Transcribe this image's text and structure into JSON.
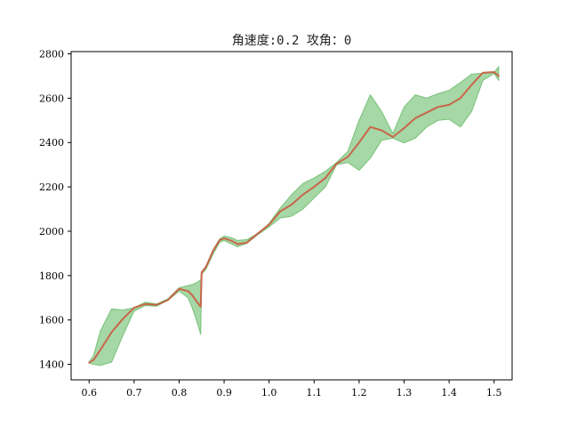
{
  "chart_data": {
    "type": "area",
    "title": "角速度:0.2 攻角：0",
    "xlabel": "",
    "ylabel": "",
    "xlim": [
      0.56,
      1.54
    ],
    "ylim": [
      1330,
      2810
    ],
    "x_ticks": [
      "0.6",
      "0.7",
      "0.8",
      "0.9",
      "1.0",
      "1.1",
      "1.2",
      "1.3",
      "1.4",
      "1.5"
    ],
    "y_ticks": [
      "1400",
      "1600",
      "1800",
      "2000",
      "2200",
      "2400",
      "2600",
      "2800"
    ],
    "grid": false,
    "legend": "none",
    "colors": {
      "band": "#77c277",
      "line": "#c8664a"
    },
    "series": [
      {
        "type": "line",
        "x": [
          0.6,
          0.61,
          0.625,
          0.65,
          0.675,
          0.7,
          0.725,
          0.75,
          0.775,
          0.8,
          0.82,
          0.83,
          0.84,
          0.848,
          0.85,
          0.86,
          0.875,
          0.89,
          0.9,
          0.915,
          0.93,
          0.95,
          0.975,
          1.0,
          1.025,
          1.05,
          1.075,
          1.1,
          1.125,
          1.15,
          1.175,
          1.2,
          1.225,
          1.25,
          1.275,
          1.3,
          1.325,
          1.35,
          1.375,
          1.4,
          1.425,
          1.45,
          1.475,
          1.5,
          1.51
        ],
        "values": [
          1408,
          1420,
          1465,
          1545,
          1605,
          1655,
          1672,
          1668,
          1690,
          1740,
          1730,
          1710,
          1680,
          1660,
          1815,
          1840,
          1910,
          1960,
          1968,
          1958,
          1942,
          1948,
          1990,
          2030,
          2090,
          2120,
          2165,
          2200,
          2240,
          2305,
          2335,
          2400,
          2470,
          2455,
          2425,
          2465,
          2510,
          2535,
          2560,
          2570,
          2600,
          2660,
          2715,
          2718,
          2700
        ]
      },
      {
        "type": "band",
        "x": [
          0.6,
          0.61,
          0.625,
          0.65,
          0.675,
          0.7,
          0.725,
          0.75,
          0.775,
          0.8,
          0.82,
          0.83,
          0.84,
          0.848,
          0.85,
          0.86,
          0.875,
          0.89,
          0.9,
          0.915,
          0.93,
          0.95,
          0.975,
          1.0,
          1.025,
          1.05,
          1.075,
          1.1,
          1.125,
          1.15,
          1.175,
          1.2,
          1.225,
          1.25,
          1.275,
          1.3,
          1.325,
          1.35,
          1.375,
          1.4,
          1.425,
          1.45,
          1.475,
          1.5,
          1.51
        ],
        "upper": [
          1410,
          1440,
          1550,
          1650,
          1645,
          1655,
          1680,
          1672,
          1695,
          1745,
          1755,
          1760,
          1770,
          1780,
          1815,
          1845,
          1915,
          1965,
          1978,
          1972,
          1958,
          1962,
          1990,
          2035,
          2105,
          2165,
          2215,
          2240,
          2270,
          2310,
          2360,
          2500,
          2615,
          2540,
          2440,
          2560,
          2615,
          2600,
          2620,
          2635,
          2670,
          2708,
          2712,
          2715,
          2742
        ],
        "lower": [
          1405,
          1400,
          1395,
          1410,
          1530,
          1640,
          1665,
          1662,
          1688,
          1730,
          1700,
          1650,
          1590,
          1535,
          1805,
          1830,
          1895,
          1950,
          1958,
          1944,
          1930,
          1945,
          1985,
          2020,
          2060,
          2068,
          2100,
          2150,
          2200,
          2300,
          2310,
          2275,
          2330,
          2410,
          2420,
          2398,
          2420,
          2470,
          2500,
          2505,
          2470,
          2540,
          2680,
          2712,
          2680
        ]
      }
    ]
  }
}
